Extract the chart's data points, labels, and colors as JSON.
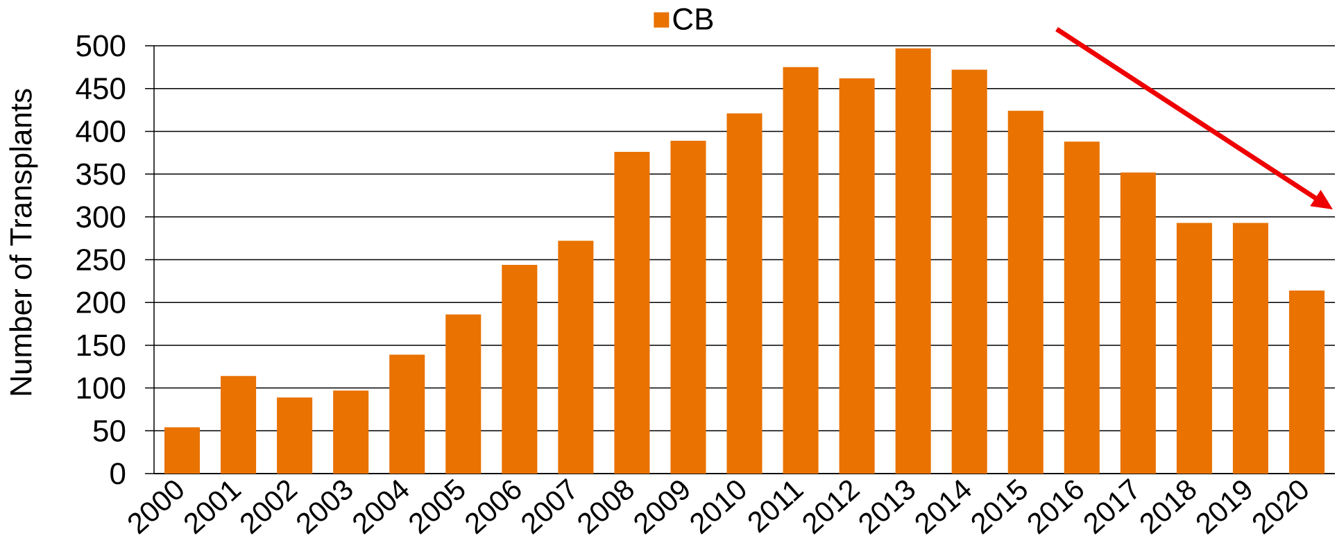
{
  "chart_data": {
    "type": "bar",
    "categories": [
      "2000",
      "2001",
      "2002",
      "2003",
      "2004",
      "2005",
      "2006",
      "2007",
      "2008",
      "2009",
      "2010",
      "2011",
      "2012",
      "2013",
      "2014",
      "2015",
      "2016",
      "2017",
      "2018",
      "2019",
      "2020"
    ],
    "series": [
      {
        "name": "CB",
        "color": "#e97200",
        "values": [
          54,
          114,
          89,
          97,
          139,
          186,
          244,
          272,
          376,
          389,
          421,
          475,
          462,
          497,
          472,
          424,
          388,
          352,
          293,
          293,
          214
        ]
      }
    ],
    "ylabel": "Number of Transplants",
    "ylim": [
      0,
      500
    ],
    "yticks": [
      0,
      50,
      100,
      150,
      200,
      250,
      300,
      350,
      400,
      450,
      500
    ],
    "grid": "y",
    "legend": "top"
  }
}
